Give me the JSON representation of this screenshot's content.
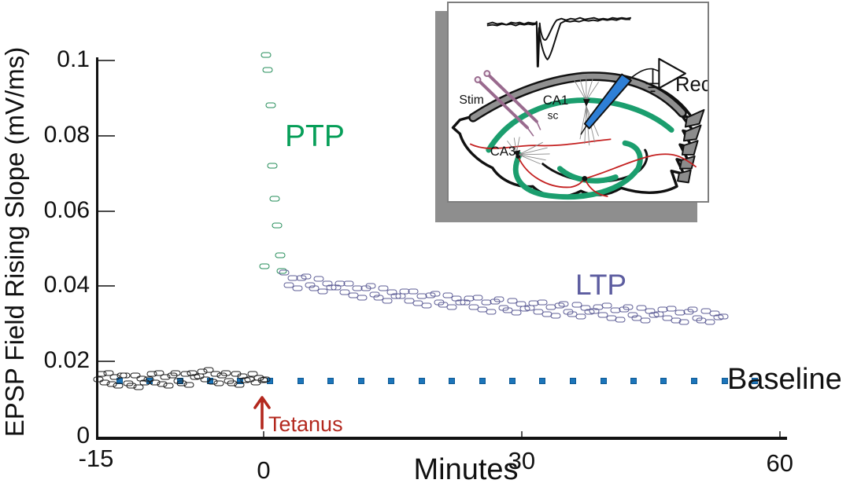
{
  "figure": {
    "y_axis_label": "EPSP Field Rising Slope (mV/ms)",
    "x_axis_label": "Minutes",
    "y_tick_labels": [
      "0",
      "0.02",
      "0.04",
      "0.06",
      "0.08",
      "0.1"
    ],
    "x_tick_labels": [
      "-15",
      "0",
      "30",
      "60"
    ],
    "annotations": {
      "ptp": "PTP",
      "ltp": "LTP",
      "baseline": "Baseline",
      "tetanus": "Tetanus"
    }
  },
  "inset": {
    "labels": {
      "stim": "Stim",
      "ca1": "CA1",
      "sc": "sc",
      "ca3": "CA3",
      "rec": "Rec"
    }
  },
  "colors": {
    "axis": "#111111",
    "ptp_marker": "#238c58",
    "ptp_text": "#069e58",
    "ltp_marker": "#5c5c95",
    "ltp_text": "#5d5da0",
    "pre_marker": "#1a1a1a",
    "baseline_dots": "#1c75ba",
    "tetanus": "#b3281e",
    "inset_green": "#1b9e6e",
    "inset_red": "#c42020",
    "stim_electrode": "#996a8e",
    "rec_electrode": "#2e7fd6",
    "shadow": "#8e8e8e"
  },
  "chart_data": {
    "type": "scatter",
    "title": "",
    "xlabel": "Minutes",
    "ylabel": "EPSP Field Rising Slope (mV/ms)",
    "xlim": [
      -15,
      60
    ],
    "ylim": [
      0,
      0.1
    ],
    "x_tick_values": [
      -15,
      0,
      30,
      60
    ],
    "y_tick_values": [
      0,
      0.02,
      0.04,
      0.06,
      0.08,
      0.1
    ],
    "grid": false,
    "legend": "none",
    "event": {
      "label": "Tetanus",
      "time": 0
    },
    "series": [
      {
        "name": "pre-tetanus-baseline",
        "marker": "open-rect",
        "color": "#1a1a1a",
        "points": [
          [
            -14.8,
            0.0153
          ],
          [
            -14.5,
            0.0166
          ],
          [
            -14.2,
            0.0144
          ],
          [
            -13.9,
            0.017
          ],
          [
            -13.6,
            0.0139
          ],
          [
            -13.3,
            0.0159
          ],
          [
            -13,
            0.0135
          ],
          [
            -12.7,
            0.0163
          ],
          [
            -12.4,
            0.0163
          ],
          [
            -12.1,
            0.0142
          ],
          [
            -11.8,
            0.0136
          ],
          [
            -11.5,
            0.0162
          ],
          [
            -11.2,
            0.0131
          ],
          [
            -10.9,
            0.0155
          ],
          [
            -10.6,
            0.0145
          ],
          [
            -10.3,
            0.0153
          ],
          [
            -10,
            0.0166
          ],
          [
            -9.7,
            0.0144
          ],
          [
            -9.4,
            0.017
          ],
          [
            -9.1,
            0.0139
          ],
          [
            -8.8,
            0.0159
          ],
          [
            -8.5,
            0.0135
          ],
          [
            -8.2,
            0.0163
          ],
          [
            -7.9,
            0.0169
          ],
          [
            -7.6,
            0.0148
          ],
          [
            -7.3,
            0.0142
          ],
          [
            -7,
            0.0168
          ],
          [
            -6.7,
            0.0137
          ],
          [
            -6.4,
            0.0169
          ],
          [
            -6.1,
            0.0159
          ],
          [
            -5.8,
            0.0161
          ],
          [
            -5.5,
            0.0174
          ],
          [
            -5.2,
            0.0152
          ],
          [
            -4.9,
            0.0178
          ],
          [
            -4.6,
            0.0147
          ],
          [
            -4.3,
            0.0167
          ],
          [
            -4,
            0.0143
          ],
          [
            -3.7,
            0.0163
          ],
          [
            -3.4,
            0.0169
          ],
          [
            -3.1,
            0.0148
          ],
          [
            -2.8,
            0.0142
          ],
          [
            -2.5,
            0.0168
          ],
          [
            -2.2,
            0.0137
          ],
          [
            -1.9,
            0.0161
          ],
          [
            -1.6,
            0.0151
          ],
          [
            -1.3,
            0.0153
          ],
          [
            -1,
            0.0166
          ],
          [
            -0.7,
            0.0144
          ],
          [
            -0.4,
            0.0157
          ],
          [
            -0.1,
            0.015
          ],
          [
            0.2,
            0.0152
          ]
        ]
      },
      {
        "name": "PTP",
        "marker": "open-rect",
        "color": "#238c58",
        "points": [
          [
            0.1,
            0.0452
          ],
          [
            0.3,
            0.1015
          ],
          [
            0.5,
            0.0975
          ],
          [
            0.8,
            0.0882
          ],
          [
            1,
            0.072
          ],
          [
            1.3,
            0.0633
          ],
          [
            1.6,
            0.0562
          ],
          [
            1.9,
            0.0483
          ],
          [
            2.1,
            0.044
          ]
        ]
      },
      {
        "name": "LTP",
        "marker": "open-rect",
        "color": "#5c5c95",
        "points": [
          [
            2.4,
            0.0436
          ],
          [
            2.9,
            0.0403
          ],
          [
            3.4,
            0.0421
          ],
          [
            3.9,
            0.0395
          ],
          [
            4.4,
            0.0421
          ],
          [
            4.9,
            0.0425
          ],
          [
            5.4,
            0.0403
          ],
          [
            5.9,
            0.0395
          ],
          [
            6.4,
            0.0419
          ],
          [
            6.9,
            0.0386
          ],
          [
            7.4,
            0.0408
          ],
          [
            7.9,
            0.0397
          ],
          [
            8.4,
            0.0397
          ],
          [
            8.9,
            0.0408
          ],
          [
            9.4,
            0.0384
          ],
          [
            9.9,
            0.0408
          ],
          [
            10.4,
            0.0376
          ],
          [
            10.9,
            0.0394
          ],
          [
            11.4,
            0.0369
          ],
          [
            11.9,
            0.0395
          ],
          [
            12.4,
            0.04
          ],
          [
            12.9,
            0.0377
          ],
          [
            13.4,
            0.037
          ],
          [
            13.9,
            0.0394
          ],
          [
            14.4,
            0.0362
          ],
          [
            14.9,
            0.0384
          ],
          [
            15.4,
            0.0373
          ],
          [
            15.9,
            0.0374
          ],
          [
            16.4,
            0.0386
          ],
          [
            16.9,
            0.0362
          ],
          [
            17.4,
            0.0387
          ],
          [
            17.9,
            0.0355
          ],
          [
            18.4,
            0.0374
          ],
          [
            18.9,
            0.0348
          ],
          [
            19.4,
            0.0375
          ],
          [
            19.9,
            0.038
          ],
          [
            20.4,
            0.0358
          ],
          [
            20.9,
            0.0351
          ],
          [
            21.4,
            0.0376
          ],
          [
            21.9,
            0.0344
          ],
          [
            22.4,
            0.0367
          ],
          [
            22.9,
            0.0356
          ],
          [
            23.4,
            0.0356
          ],
          [
            23.9,
            0.0368
          ],
          [
            24.4,
            0.0345
          ],
          [
            24.9,
            0.037
          ],
          [
            25.4,
            0.0338
          ],
          [
            25.9,
            0.0357
          ],
          [
            26.4,
            0.0332
          ],
          [
            26.9,
            0.036
          ],
          [
            27.4,
            0.0365
          ],
          [
            27.9,
            0.0343
          ],
          [
            28.4,
            0.0336
          ],
          [
            28.9,
            0.0361
          ],
          [
            29.4,
            0.0329
          ],
          [
            29.9,
            0.0352
          ],
          [
            30.4,
            0.0341
          ],
          [
            30.9,
            0.0343
          ],
          [
            31.4,
            0.0355
          ],
          [
            31.9,
            0.0332
          ],
          [
            32.4,
            0.0358
          ],
          [
            32.9,
            0.0326
          ],
          [
            33.4,
            0.0345
          ],
          [
            33.9,
            0.0321
          ],
          [
            34.4,
            0.0348
          ],
          [
            34.9,
            0.0353
          ],
          [
            35.4,
            0.0331
          ],
          [
            35.9,
            0.0325
          ],
          [
            36.4,
            0.035
          ],
          [
            36.9,
            0.0319
          ],
          [
            37.4,
            0.0342
          ],
          [
            37.9,
            0.0331
          ],
          [
            38.4,
            0.0333
          ],
          [
            38.9,
            0.0345
          ],
          [
            39.4,
            0.0323
          ],
          [
            39.9,
            0.0348
          ],
          [
            40.4,
            0.0316
          ],
          [
            40.9,
            0.0336
          ],
          [
            41.4,
            0.0311
          ],
          [
            41.9,
            0.0339
          ],
          [
            42.4,
            0.0344
          ],
          [
            42.9,
            0.0323
          ],
          [
            43.4,
            0.0316
          ],
          [
            43.9,
            0.0342
          ],
          [
            44.4,
            0.031
          ],
          [
            44.9,
            0.0334
          ],
          [
            45.4,
            0.0324
          ],
          [
            45.9,
            0.0325
          ],
          [
            46.4,
            0.0338
          ],
          [
            46.9,
            0.0315
          ],
          [
            47.4,
            0.0341
          ],
          [
            47.9,
            0.0309
          ],
          [
            48.4,
            0.0329
          ],
          [
            48.9,
            0.0305
          ],
          [
            49.4,
            0.0332
          ],
          [
            49.9,
            0.0338
          ],
          [
            50.4,
            0.0316
          ],
          [
            50.9,
            0.031
          ],
          [
            51.4,
            0.0335
          ],
          [
            51.9,
            0.0304
          ],
          [
            52.4,
            0.0328
          ],
          [
            52.9,
            0.0317
          ],
          [
            53.4,
            0.0319
          ]
        ]
      },
      {
        "name": "baseline-reference",
        "marker": "filled-square",
        "color": "#1c75ba",
        "points": [
          [
            -12.9,
            0.0148
          ],
          [
            -10.2,
            0.0148
          ],
          [
            -7.5,
            0.0148
          ],
          [
            -4.8,
            0.0148
          ],
          [
            -2.1,
            0.0148
          ],
          [
            0.7,
            0.0148
          ],
          [
            4.3,
            0.0148
          ],
          [
            7.8,
            0.0148
          ],
          [
            11.3,
            0.0148
          ],
          [
            14.8,
            0.0148
          ],
          [
            18.4,
            0.0148
          ],
          [
            21.9,
            0.0148
          ],
          [
            25.4,
            0.0148
          ],
          [
            28.9,
            0.0148
          ],
          [
            32.4,
            0.0148
          ],
          [
            36,
            0.0148
          ],
          [
            39.5,
            0.0148
          ],
          [
            43,
            0.0148
          ],
          [
            46.5,
            0.0148
          ],
          [
            50,
            0.0148
          ],
          [
            53.6,
            0.0148
          ],
          [
            57.1,
            0.0148
          ]
        ]
      }
    ]
  }
}
